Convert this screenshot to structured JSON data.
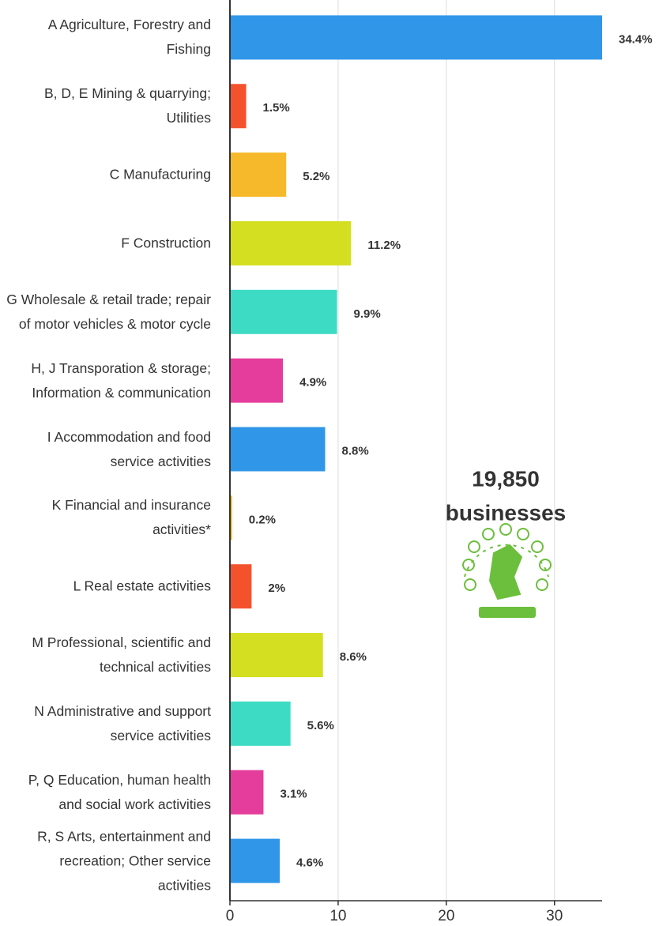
{
  "chart_data": {
    "type": "hbar",
    "categories": [
      "A Agriculture, Forestry and Fishing",
      "B, D, E Mining & quarrying; Utilities",
      "C Manufacturing",
      "F Construction",
      "G Wholesale & retail trade; repair of motor vehicles & motor cycle",
      "H, J Transporation & storage; Information & communication",
      "I Accommodation and food service activities",
      "K Financial and insurance activities*",
      "L Real estate activities",
      "M Professional, scientific and technical activities",
      "N Administrative and support service activities",
      "P, Q Education, human health and social work activities",
      "R, S Arts, entertainment and recreation; Other service activities"
    ],
    "values": [
      34.4,
      1.5,
      5.2,
      11.2,
      9.9,
      4.9,
      8.8,
      0.2,
      2,
      8.6,
      5.6,
      3.1,
      4.6
    ],
    "value_labels": [
      "34.4%",
      "1.5%",
      "5.2%",
      "11.2%",
      "9.9%",
      "4.9%",
      "8.8%",
      "0.2%",
      "2%",
      "8.6%",
      "5.6%",
      "3.1%",
      "4.6%"
    ],
    "colors": [
      "#2f96e8",
      "#f4522d",
      "#f6b92b",
      "#d4df22",
      "#3ddbc4",
      "#e43d9c",
      "#2f96e8",
      "#f6b92b",
      "#f4522d",
      "#d4df22",
      "#3ddbc4",
      "#e43d9c",
      "#2f96e8"
    ],
    "xlim": [
      0,
      34.4
    ],
    "xticks": [
      0,
      10,
      20,
      30
    ],
    "grid": true,
    "annotation": [
      "19,850",
      "businesses"
    ]
  }
}
